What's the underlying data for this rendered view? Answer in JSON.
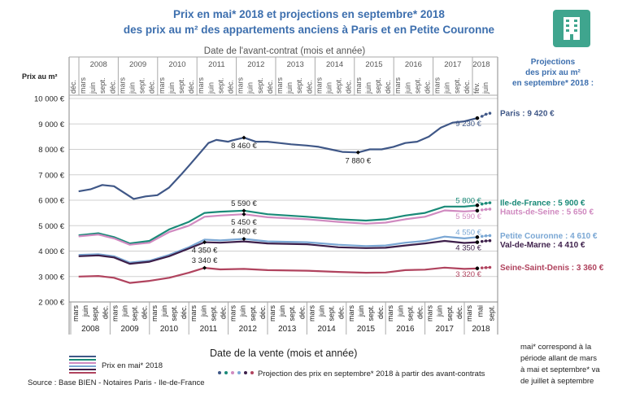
{
  "title": [
    "Prix en mai* 2018 et projections en septembre* 2018",
    "des prix au m² des appartements anciens à Paris et en Petite Couronne"
  ],
  "top_axis_title": "Date de l'avant-contrat (mois et année)",
  "top_first_month": "déc.",
  "top_years": [
    "2008",
    "2009",
    "2010",
    "2011",
    "2012",
    "2013",
    "2014",
    "2015",
    "2016",
    "2017",
    "2018"
  ],
  "top_2018_months": [
    "fév.",
    "juin"
  ],
  "months": [
    "mars",
    "juin",
    "sept.",
    "déc."
  ],
  "bottom_2018_months": [
    "mars",
    "mai",
    "sept."
  ],
  "projection_heading": [
    "Projections",
    "des prix au m²",
    "en septembre* 2018 :"
  ],
  "footnote": [
    "mai* correspond à la",
    "période allant de mars",
    "à mai et septembre* va",
    "de juillet à septembre"
  ],
  "legend": {
    "solid": "Prix en mai* 2018",
    "dotted": "Projection des prix en septembre* 2018 à partir des avant-contrats"
  },
  "source": "Source : Base BIEN - Notaires Paris - Ile-de-France",
  "icon": "building-icon",
  "icon_color": "#3fa58e",
  "chart_data": {
    "type": "line",
    "ylabel": "Prix au m²",
    "xlabel": "Date de la vente (mois et année)",
    "ylim": [
      2000,
      10000
    ],
    "yticks": [
      "2 000 €",
      "3 000 €",
      "4 000 €",
      "5 000 €",
      "6 000 €",
      "7 000 €",
      "8 000 €",
      "9 000 €",
      "10 000 €"
    ],
    "xticks": [
      "2008",
      "2009",
      "2010",
      "2011",
      "2012",
      "2013",
      "2014",
      "2015",
      "2016",
      "2017",
      "2018"
    ],
    "grid": true,
    "series": [
      {
        "name": "Paris : 9 420 €",
        "color": "#3f5787",
        "x": [
          2008.2,
          2008.5,
          2008.8,
          2009.1,
          2009.4,
          2009.6,
          2009.9,
          2010.2,
          2010.5,
          2010.8,
          2011.0,
          2011.25,
          2011.5,
          2011.7,
          2012.0,
          2012.1,
          2012.4,
          2012.7,
          2013.0,
          2013.3,
          2013.6,
          2014.0,
          2014.3,
          2014.6,
          2014.9,
          2015.3,
          2015.6,
          2015.9,
          2016.2,
          2016.5,
          2016.8,
          2017.1,
          2017.4,
          2017.7,
          2018.0,
          2018.33
        ],
        "y": [
          6350,
          6430,
          6600,
          6550,
          6250,
          6050,
          6150,
          6200,
          6500,
          7000,
          7350,
          7800,
          8250,
          8370,
          8300,
          8350,
          8460,
          8300,
          8300,
          8250,
          8200,
          8150,
          8100,
          8000,
          7900,
          7880,
          8000,
          8000,
          8100,
          8250,
          8300,
          8500,
          8850,
          9050,
          9100,
          9230
        ],
        "proj_x": [
          2018.33,
          2018.45,
          2018.55,
          2018.65
        ],
        "proj_y": [
          9230,
          9300,
          9380,
          9420
        ],
        "labels": [
          {
            "x": 2012.4,
            "y": 8460,
            "text": "8 460 €"
          },
          {
            "x": 2015.3,
            "y": 7880,
            "text": "7 880 €"
          },
          {
            "x": 2018.33,
            "y": 9230,
            "text": "9 230 €"
          }
        ]
      },
      {
        "name": "Ile-de-France : 5 900 €",
        "color": "#1a8a78",
        "x": [
          2008.2,
          2008.7,
          2009.1,
          2009.5,
          2010.0,
          2010.5,
          2011.0,
          2011.4,
          2011.8,
          2012.4,
          2013.0,
          2014.0,
          2014.8,
          2015.5,
          2016.0,
          2016.5,
          2017.0,
          2017.5,
          2018.0,
          2018.33
        ],
        "y": [
          4620,
          4700,
          4550,
          4300,
          4400,
          4850,
          5150,
          5500,
          5550,
          5590,
          5450,
          5350,
          5250,
          5200,
          5250,
          5400,
          5500,
          5750,
          5750,
          5800
        ],
        "proj_x": [
          2018.33,
          2018.45,
          2018.55,
          2018.65
        ],
        "proj_y": [
          5800,
          5850,
          5880,
          5900
        ],
        "labels": [
          {
            "x": 2012.4,
            "y": 5590,
            "text": "5 590 €",
            "pos": "above"
          },
          {
            "x": 2018.33,
            "y": 5800,
            "text": "5 800 €",
            "pos": "above"
          }
        ]
      },
      {
        "name": "Hauts-de-Seine : 5 650 €",
        "color": "#d08ac0",
        "x": [
          2008.2,
          2008.7,
          2009.1,
          2009.5,
          2010.0,
          2010.5,
          2011.0,
          2011.4,
          2011.8,
          2012.4,
          2013.0,
          2014.0,
          2014.8,
          2015.5,
          2016.0,
          2016.5,
          2017.0,
          2017.5,
          2018.0,
          2018.33
        ],
        "y": [
          4580,
          4650,
          4500,
          4250,
          4330,
          4750,
          5000,
          5350,
          5400,
          5450,
          5330,
          5250,
          5150,
          5080,
          5120,
          5250,
          5350,
          5600,
          5560,
          5590
        ],
        "proj_x": [
          2018.33,
          2018.45,
          2018.55,
          2018.65
        ],
        "proj_y": [
          5590,
          5620,
          5640,
          5650
        ],
        "labels": [
          {
            "x": 2012.4,
            "y": 5450,
            "text": "5 450 €"
          },
          {
            "x": 2018.33,
            "y": 5590,
            "text": "5 590 €"
          }
        ]
      },
      {
        "name": "Petite Couronne : 4 610 €",
        "color": "#7aa7d4",
        "x": [
          2008.2,
          2008.7,
          2009.1,
          2009.5,
          2010.0,
          2010.5,
          2011.0,
          2011.4,
          2011.8,
          2012.4,
          2013.0,
          2014.0,
          2014.8,
          2015.5,
          2016.0,
          2016.5,
          2017.0,
          2017.5,
          2018.0,
          2018.33
        ],
        "y": [
          3850,
          3880,
          3800,
          3550,
          3620,
          3850,
          4150,
          4450,
          4420,
          4480,
          4380,
          4350,
          4250,
          4200,
          4220,
          4330,
          4400,
          4570,
          4500,
          4550
        ],
        "proj_x": [
          2018.33,
          2018.45,
          2018.55,
          2018.65
        ],
        "proj_y": [
          4550,
          4580,
          4600,
          4610
        ],
        "labels": [
          {
            "x": 2012.4,
            "y": 4480,
            "text": "4 480 €",
            "pos": "above"
          },
          {
            "x": 2018.33,
            "y": 4550,
            "text": "4 550 €",
            "pos": "above"
          }
        ]
      },
      {
        "name": "Val-de-Marne : 4 410 €",
        "color": "#3d1f4a",
        "x": [
          2008.2,
          2008.7,
          2009.1,
          2009.5,
          2010.0,
          2010.5,
          2011.0,
          2011.4,
          2011.8,
          2012.4,
          2013.0,
          2014.0,
          2014.8,
          2015.5,
          2016.0,
          2016.5,
          2017.0,
          2017.5,
          2018.0,
          2018.33
        ],
        "y": [
          3800,
          3830,
          3750,
          3500,
          3580,
          3800,
          4100,
          4350,
          4330,
          4380,
          4300,
          4270,
          4150,
          4120,
          4130,
          4220,
          4300,
          4400,
          4320,
          4350
        ],
        "proj_x": [
          2018.33,
          2018.45,
          2018.55,
          2018.65
        ],
        "proj_y": [
          4350,
          4380,
          4400,
          4410
        ],
        "labels": [
          {
            "x": 2011.4,
            "y": 4350,
            "text": "4 350 €"
          },
          {
            "x": 2018.33,
            "y": 4350,
            "text": "4 350 €"
          }
        ]
      },
      {
        "name": "Seine-Saint-Denis : 3 360 €",
        "color": "#b0435e",
        "x": [
          2008.2,
          2008.7,
          2009.1,
          2009.5,
          2010.0,
          2010.5,
          2011.0,
          2011.4,
          2011.8,
          2012.4,
          2013.0,
          2014.0,
          2014.8,
          2015.5,
          2016.0,
          2016.5,
          2017.0,
          2017.5,
          2018.0,
          2018.33
        ],
        "y": [
          3000,
          3020,
          2950,
          2750,
          2830,
          2950,
          3150,
          3340,
          3280,
          3300,
          3250,
          3230,
          3180,
          3150,
          3160,
          3250,
          3270,
          3350,
          3300,
          3320
        ],
        "proj_x": [
          2018.33,
          2018.45,
          2018.55,
          2018.65
        ],
        "proj_y": [
          3320,
          3340,
          3350,
          3360
        ],
        "labels": [
          {
            "x": 2011.4,
            "y": 3340,
            "text": "3 340 €",
            "pos": "above"
          },
          {
            "x": 2018.33,
            "y": 3320,
            "text": "3 320 €"
          }
        ]
      }
    ]
  }
}
